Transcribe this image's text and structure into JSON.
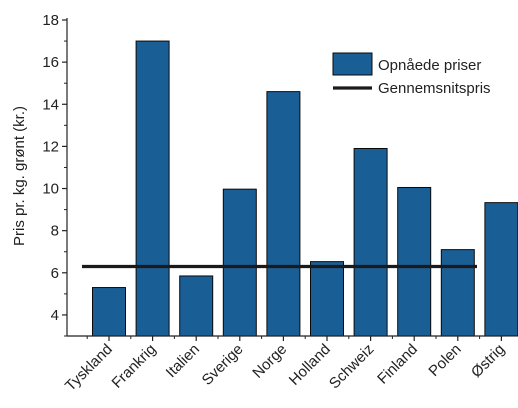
{
  "chart_data": {
    "type": "bar",
    "title": "",
    "xlabel": "",
    "ylabel": "Pris pr. kg. grønt (kr.)",
    "ylim": [
      3,
      18
    ],
    "yticks": [
      4,
      6,
      8,
      10,
      12,
      14,
      16,
      18
    ],
    "grid": false,
    "legend_position": "top-right",
    "categories": [
      "Tyskland",
      "Frankrig",
      "Italien",
      "Sverige",
      "Norge",
      "Holland",
      "Schweiz",
      "Finland",
      "Polen",
      "Østrig"
    ],
    "series": [
      {
        "name": "Opnåede priser",
        "kind": "bar",
        "color": "#1a5e96",
        "values": [
          5.3,
          17.0,
          5.85,
          9.97,
          14.6,
          6.53,
          11.9,
          10.05,
          7.1,
          9.33
        ]
      },
      {
        "name": "Gennemsnitspris",
        "kind": "line",
        "color": "#1a1a1a",
        "values": [
          6.3,
          6.3,
          6.3,
          6.3,
          6.3,
          6.3,
          6.3,
          6.3,
          6.3,
          6.3
        ]
      }
    ]
  }
}
